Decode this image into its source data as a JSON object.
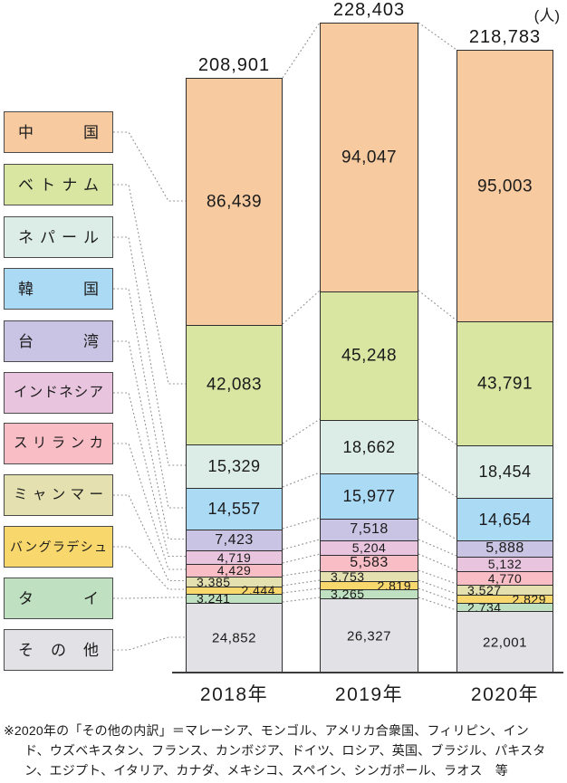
{
  "unit_label": "(人)",
  "note_lines": [
    "※2020年の「その他の内訳」＝マレーシア、モンゴル、アメリカ合衆国、フィリピン、イン",
    "ド、ウズベキスタン、フランス、カンボジア、ドイツ、ロシア、英国、ブラジル、パキスタ",
    "ン、エジプト、イタリア、カナダ、メキシコ、スペイン、シンガポール、ラオス　等"
  ],
  "chart_data": {
    "type": "bar",
    "stacked": true,
    "orientation": "vertical",
    "unit": "人",
    "categories": [
      "2018年",
      "2019年",
      "2020年"
    ],
    "totals": [
      208901,
      228403,
      218783
    ],
    "total_labels": [
      "208,901",
      "228,403",
      "218,783"
    ],
    "stack_order": "top-to-bottom",
    "legend_position": "left",
    "grid": false,
    "series": [
      {
        "name": "中国",
        "color": "#F7CAA0",
        "values": [
          86439,
          94047,
          95003
        ],
        "value_label_align": "center"
      },
      {
        "name": "ベトナム",
        "color": "#D9E6A2",
        "values": [
          42083,
          45248,
          43791
        ],
        "value_label_align": "center"
      },
      {
        "name": "ネパール",
        "color": "#DCEDE7",
        "values": [
          15329,
          18662,
          18454
        ],
        "value_label_align": "center"
      },
      {
        "name": "韓国",
        "color": "#ABDAF5",
        "values": [
          14557,
          15977,
          14654
        ],
        "value_label_align": "center"
      },
      {
        "name": "台湾",
        "color": "#C9C4E3",
        "values": [
          7423,
          7518,
          5888
        ],
        "value_label_align": "center"
      },
      {
        "name": "インドネシア",
        "color": "#E8C4DE",
        "values": [
          4719,
          5204,
          5132
        ],
        "value_label_align": "center"
      },
      {
        "name": "スリランカ",
        "color": "#F9BDC6",
        "values": [
          4429,
          5583,
          4770
        ],
        "value_label_align": "center"
      },
      {
        "name": "ミャンマー",
        "color": "#E4E0B0",
        "values": [
          3385,
          3753,
          3527
        ],
        "value_label_align": "left"
      },
      {
        "name": "バングラデシュ",
        "color": "#F8D76C",
        "values": [
          2444,
          2819,
          2829
        ],
        "value_label_align": "right"
      },
      {
        "name": "タイ",
        "color": "#BFE1C1",
        "values": [
          3241,
          3265,
          2734
        ],
        "value_label_align": "left"
      },
      {
        "name": "その他",
        "color": "#E2E2E6",
        "values": [
          24852,
          26327,
          22001
        ],
        "value_label_align": "center",
        "value_label_size": 15
      }
    ]
  }
}
